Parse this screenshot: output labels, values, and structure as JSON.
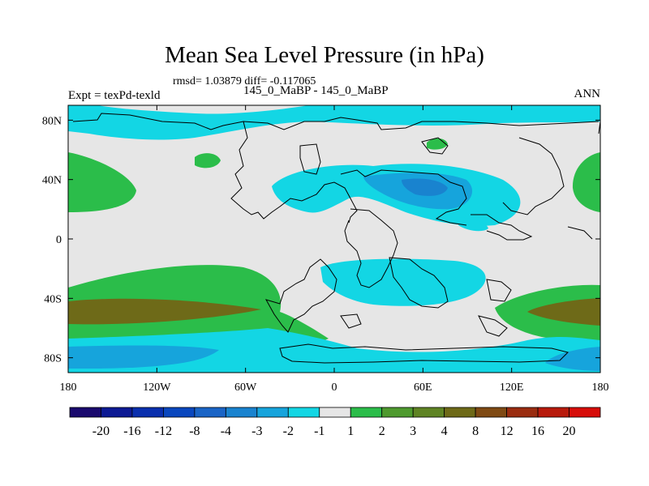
{
  "title": "Mean Sea Level Pressure (in hPa)",
  "stats": "rmsd= 1.03879 diff= -0.117065",
  "left_label": "Expt = texPd-texld",
  "center_label": "145_0_MaBP - 145_0_MaBP",
  "right_label": "ANN",
  "lat_ticks": [
    {
      "value": 80,
      "label": "80N"
    },
    {
      "value": 40,
      "label": "40N"
    },
    {
      "value": 0,
      "label": "0"
    },
    {
      "value": -40,
      "label": "40S"
    },
    {
      "value": -80,
      "label": "80S"
    }
  ],
  "lon_ticks": [
    {
      "value": -180,
      "label": "180"
    },
    {
      "value": -120,
      "label": "120W"
    },
    {
      "value": -60,
      "label": "60W"
    },
    {
      "value": 0,
      "label": "0"
    },
    {
      "value": 60,
      "label": "60E"
    },
    {
      "value": 120,
      "label": "120E"
    },
    {
      "value": 180,
      "label": "180"
    }
  ],
  "colorbar": {
    "levels": [
      "-20",
      "-16",
      "-12",
      "-8",
      "-4",
      "-3",
      "-2",
      "-1",
      "1",
      "2",
      "3",
      "4",
      "8",
      "12",
      "16",
      "20"
    ],
    "colors": [
      "#1a0a6e",
      "#0d1a94",
      "#0a2fae",
      "#0a47be",
      "#1a64c6",
      "#1983cf",
      "#16a4dc",
      "#13d6e4",
      "#e6e6e6",
      "#2bbd4a",
      "#4e9a2e",
      "#5f8424",
      "#6e6a18",
      "#7f4a14",
      "#9a2c10",
      "#b81a0c",
      "#d70d0a"
    ]
  },
  "colors": {
    "land_outline": "#000000",
    "neutral": "#e6e6e6",
    "light_blue": "#13d6e4",
    "mid_blue": "#16a4dc",
    "blue": "#1983cf",
    "green": "#2bbd4a",
    "dark_green": "#4e9a2e",
    "olive": "#6e6a18"
  }
}
